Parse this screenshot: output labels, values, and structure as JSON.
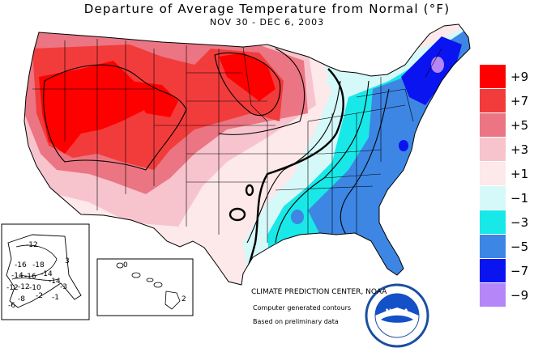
{
  "header": {
    "title": "Departure of Average Temperature from Normal (°F)",
    "subtitle": "NOV 30 - DEC  6, 2003"
  },
  "legend": {
    "items": [
      {
        "label": "+9",
        "color": "#ff0000"
      },
      {
        "label": "+7",
        "color": "#f23c3c"
      },
      {
        "label": "+5",
        "color": "#eb7582"
      },
      {
        "label": "+3",
        "color": "#f7c4cd"
      },
      {
        "label": "+1",
        "color": "#fde8ea"
      },
      {
        "label": "−1",
        "color": "#d5f8f8"
      },
      {
        "label": "−3",
        "color": "#19e8e8"
      },
      {
        "label": "−5",
        "color": "#3d86e3"
      },
      {
        "label": "−7",
        "color": "#0a14f0"
      },
      {
        "label": "−9",
        "color": "#b486f7"
      }
    ]
  },
  "alaska": {
    "contour_labels": [
      "-12",
      "-16",
      "-18",
      "-14",
      "-14",
      "-16",
      "-14",
      "-12",
      "-12",
      "-10",
      "-8",
      "-6",
      "-2",
      "-3",
      "3",
      "-1"
    ]
  },
  "hawaii": {
    "contour_labels": [
      "0",
      "2"
    ]
  },
  "credits": {
    "org": "CLIMATE PREDICTION CENTER, NOAA",
    "line1": "Computer generated contours",
    "line2": "Based on preliminary data",
    "logo_text": "NOAA"
  }
}
